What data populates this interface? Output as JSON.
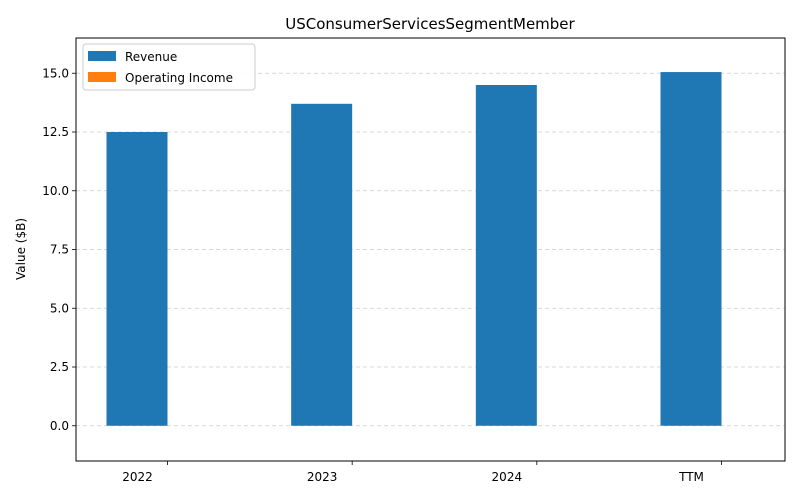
{
  "chart_data": {
    "type": "bar",
    "title": "USConsumerServicesSegmentMember",
    "xlabel": "",
    "ylabel": "Value ($B)",
    "categories": [
      "2022",
      "2023",
      "2024",
      "TTM"
    ],
    "series": [
      {
        "name": "Revenue",
        "color": "#1f77b4",
        "values": [
          12.5,
          13.7,
          14.5,
          15.05
        ]
      },
      {
        "name": "Operating Income",
        "color": "#ff7f0e",
        "values": [
          0,
          0,
          0,
          0
        ]
      }
    ],
    "ylim": [
      -1.5,
      16.5
    ],
    "yticks": [
      "0.0",
      "2.5",
      "5.0",
      "7.5",
      "10.0",
      "12.5",
      "15.0"
    ],
    "grid": "y-dashed",
    "legend_position": "top-left"
  }
}
